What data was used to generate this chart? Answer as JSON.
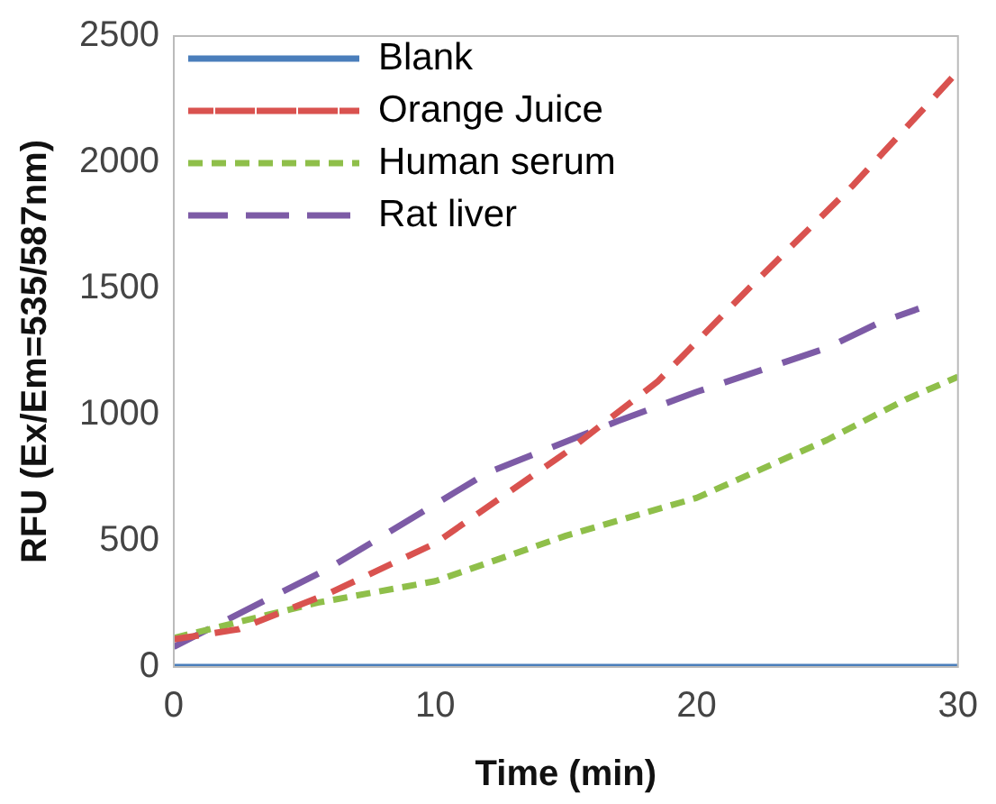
{
  "chart_data": {
    "type": "line",
    "xlabel": "Time (min)",
    "ylabel": "RFU (Ex/Em=535/587nm)",
    "xlim": [
      0,
      30
    ],
    "xticks": [
      0,
      10,
      20,
      30
    ],
    "ylim": [
      0,
      2500
    ],
    "yticks": [
      0,
      500,
      1000,
      1500,
      2000,
      2500
    ],
    "grid": false,
    "legend": "top left",
    "marker": "none",
    "series": [
      {
        "name": "Blank",
        "color": "#4a7ebb",
        "line_style": "solid",
        "x": [
          0,
          30
        ],
        "values": [
          0,
          0
        ]
      },
      {
        "name": "Orange Juice",
        "color": "#d9524f",
        "line_style": "dashed",
        "x": [
          0,
          2.5,
          6,
          10,
          15,
          18.5,
          22,
          26,
          30
        ],
        "values": [
          110,
          150,
          295,
          490,
          850,
          1130,
          1500,
          1910,
          2360
        ]
      },
      {
        "name": "Human serum",
        "color": "#8fbf4a",
        "line_style": "dotted",
        "x": [
          0,
          5.5,
          10,
          15,
          20,
          25,
          28,
          30
        ],
        "values": [
          115,
          255,
          340,
          520,
          670,
          900,
          1060,
          1150
        ]
      },
      {
        "name": "Rat liver",
        "color": "#7d5ba6",
        "line_style": "longdash",
        "x": [
          0,
          6,
          12,
          17,
          20,
          25,
          27,
          28.5
        ],
        "values": [
          80,
          395,
          770,
          975,
          1090,
          1265,
          1365,
          1420
        ]
      }
    ]
  }
}
